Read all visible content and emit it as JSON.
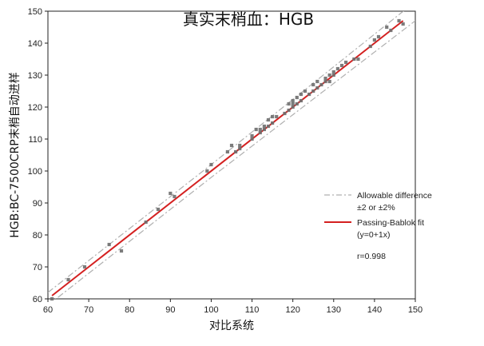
{
  "chart_data": {
    "type": "scatter",
    "title": "真实末梢血：HGB",
    "xlabel": "对比系统",
    "ylabel": "HGB:BC-7500CRP末梢自动进样",
    "xlim": [
      60,
      150
    ],
    "ylim": [
      60,
      150
    ],
    "xticks": [
      60,
      70,
      80,
      90,
      100,
      110,
      120,
      130,
      140,
      150
    ],
    "yticks": [
      60,
      70,
      80,
      90,
      100,
      110,
      120,
      130,
      140,
      150
    ],
    "grid": false,
    "legend_position": "right",
    "colors": {
      "points": "#6e6e6e",
      "fit_line": "#d42020",
      "limit_lines": "#b0b0b0"
    },
    "series": [
      {
        "kind": "points",
        "points": [
          [
            61,
            60
          ],
          [
            65,
            66
          ],
          [
            69,
            70
          ],
          [
            75,
            77
          ],
          [
            78,
            75
          ],
          [
            84,
            84
          ],
          [
            87,
            88
          ],
          [
            90,
            93
          ],
          [
            91,
            92
          ],
          [
            99,
            100
          ],
          [
            100,
            102
          ],
          [
            104,
            106
          ],
          [
            105,
            108
          ],
          [
            106,
            106
          ],
          [
            107,
            107
          ],
          [
            107,
            108
          ],
          [
            110,
            110
          ],
          [
            110,
            111
          ],
          [
            111,
            113
          ],
          [
            112,
            112
          ],
          [
            112,
            113
          ],
          [
            113,
            113
          ],
          [
            113,
            114
          ],
          [
            114,
            114
          ],
          [
            114,
            116
          ],
          [
            115,
            115
          ],
          [
            115,
            117
          ],
          [
            116,
            117
          ],
          [
            118,
            118
          ],
          [
            119,
            119
          ],
          [
            119,
            121
          ],
          [
            120,
            120
          ],
          [
            120,
            121
          ],
          [
            120,
            122
          ],
          [
            121,
            121
          ],
          [
            121,
            123
          ],
          [
            122,
            122
          ],
          [
            122,
            124
          ],
          [
            123,
            125
          ],
          [
            124,
            124
          ],
          [
            125,
            125
          ],
          [
            125,
            127
          ],
          [
            126,
            126
          ],
          [
            126,
            128
          ],
          [
            127,
            127
          ],
          [
            128,
            128
          ],
          [
            128,
            129
          ],
          [
            129,
            128
          ],
          [
            129,
            130
          ],
          [
            130,
            130
          ],
          [
            130,
            131
          ],
          [
            131,
            132
          ],
          [
            132,
            133
          ],
          [
            133,
            134
          ],
          [
            135,
            135
          ],
          [
            136,
            135
          ],
          [
            139,
            139
          ],
          [
            140,
            141
          ],
          [
            141,
            142
          ],
          [
            143,
            145
          ],
          [
            144,
            144
          ],
          [
            146,
            147
          ],
          [
            147,
            146
          ]
        ]
      },
      {
        "kind": "line",
        "name": "Passing-Bablok fit",
        "equation": "(y=0+1x)",
        "intercept": 0,
        "slope": 1
      },
      {
        "kind": "limits",
        "name": "Allowable difference",
        "note": "±2 or ±2%",
        "abs": 2,
        "pct": 2
      }
    ],
    "annotations": [
      "r=0.998"
    ]
  }
}
